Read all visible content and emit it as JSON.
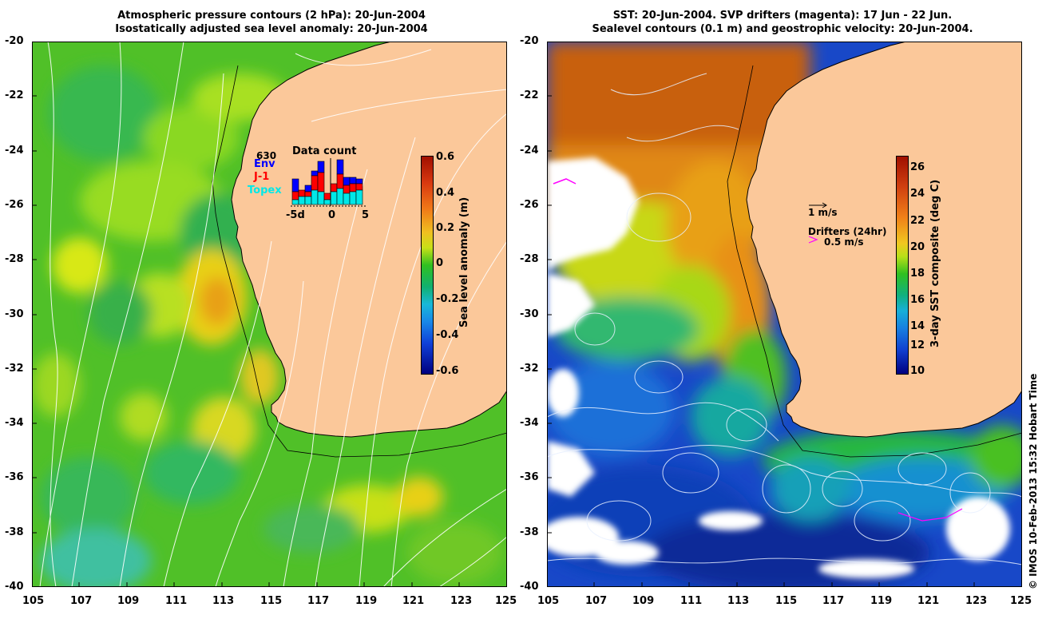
{
  "left_map": {
    "title_line1": "Atmospheric pressure contours (2 hPa): 20-Jun-2004",
    "title_line2": "Isostatically adjusted sea level anomaly: 20-Jun-2004",
    "lat_ticks": [
      "-20",
      "-22",
      "-24",
      "-26",
      "-28",
      "-30",
      "-32",
      "-34",
      "-36",
      "-38",
      "-40"
    ],
    "lon_ticks": [
      "105",
      "107",
      "109",
      "111",
      "113",
      "115",
      "117",
      "119",
      "121",
      "123",
      "125"
    ],
    "colorbar": {
      "label": "Sea level anomaly (m)",
      "ticks": [
        "0.6",
        "0.4",
        "0.2",
        "0",
        "-0.2",
        "-0.4",
        "-0.6"
      ]
    },
    "data_count": {
      "title": "Data count",
      "max_label": "630",
      "legend_env": "Env",
      "legend_j1": "J-1",
      "legend_topex": "Topex",
      "axis_left": "-5d",
      "axis_mid": "0",
      "axis_right": "5"
    }
  },
  "right_map": {
    "title_line1": "SST: 20-Jun-2004. SVP drifters (magenta): 17 Jun - 22 Jun.",
    "title_line2": "Sealevel contours (0.1 m) and geostrophic velocity: 20-Jun-2004.",
    "lat_ticks": [
      "-20",
      "-22",
      "-24",
      "-26",
      "-28",
      "-30",
      "-32",
      "-34",
      "-36",
      "-38",
      "-40"
    ],
    "lon_ticks": [
      "105",
      "107",
      "109",
      "111",
      "113",
      "115",
      "117",
      "119",
      "121",
      "123",
      "125"
    ],
    "colorbar": {
      "label": "3-day SST composite (deg C)",
      "ticks": [
        "26",
        "24",
        "22",
        "20",
        "18",
        "16",
        "14",
        "12",
        "10"
      ]
    },
    "velocity_legend": "1 m/s",
    "drifters_legend": "Drifters (24hr)",
    "drifters_speed": "0.5 m/s"
  },
  "credit": "© IMOS 10-Feb-2013 15:32 Hobart Time",
  "colors": {
    "land": "#fbc89a",
    "sla_green": "#4cc020",
    "sst_blue": "#1040c0",
    "sst_orange": "#e88a18",
    "magenta": "#ff00ff"
  }
}
